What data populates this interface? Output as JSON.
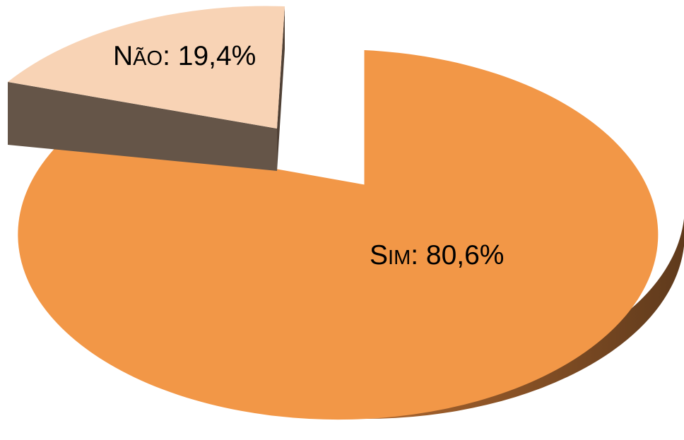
{
  "chart_data": {
    "type": "pie",
    "title": "",
    "slices": [
      {
        "name": "Sim",
        "value": 80.6,
        "label_cap": "S",
        "label_small": "IM",
        "label_value": ": 80,6%",
        "color": "#F29747",
        "side_light": "#D9883F",
        "side_dark": "#5F3A1C"
      },
      {
        "name": "Não",
        "value": 19.4,
        "label_cap": "N",
        "label_small": "ÃO",
        "label_value": ": 19,4%",
        "color": "#F8D3B5",
        "side_light": "#655548",
        "side_dark": "#5A4B40"
      }
    ],
    "exploded": "Não",
    "style": "3d"
  }
}
